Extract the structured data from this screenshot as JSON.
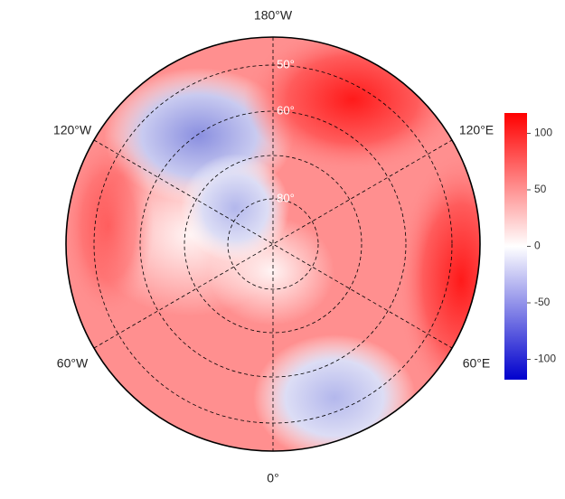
{
  "map": {
    "longitude_labels": [
      "180°W",
      "120°W",
      "120°E",
      "60°W",
      "60°E",
      "0°"
    ],
    "latitude_labels": [
      "50°",
      "60°",
      "80°"
    ],
    "colorbar": {
      "lim": [
        -118,
        118
      ],
      "ticks": [
        100,
        50,
        0,
        -50,
        -100
      ],
      "colors": [
        "#0000cd",
        "#ffffff",
        "#ff0000"
      ]
    }
  }
}
